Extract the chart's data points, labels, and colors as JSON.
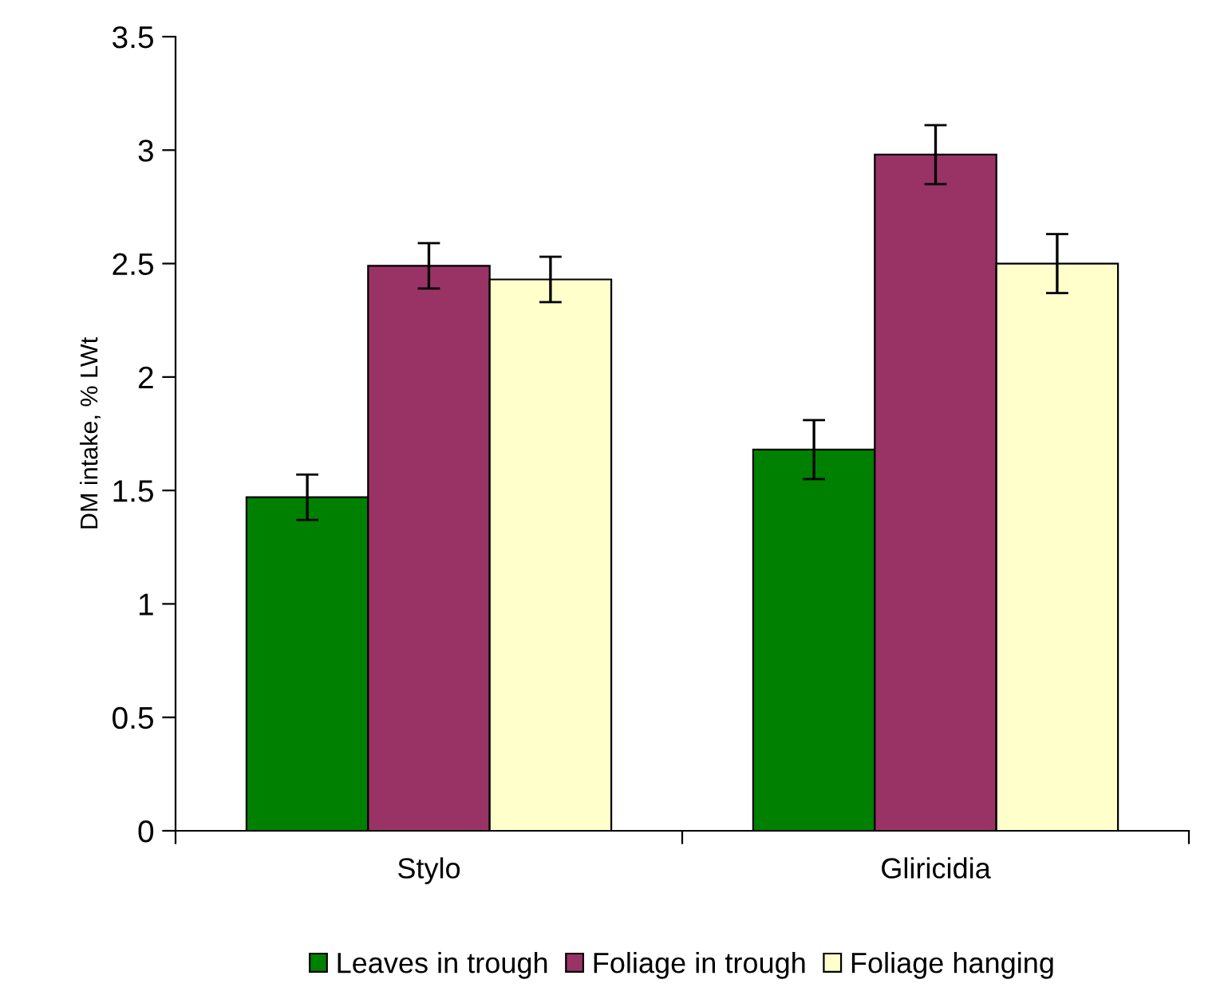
{
  "chart_data": {
    "type": "bar",
    "ylabel": "DM intake, % LWt",
    "categories": [
      "Stylo",
      "Gliricidia"
    ],
    "series": [
      {
        "name": "Leaves in trough",
        "color": "#008000",
        "values": [
          1.47,
          1.68
        ],
        "errors": [
          0.1,
          0.13
        ]
      },
      {
        "name": "Foliage in trough",
        "color": "#993366",
        "values": [
          2.49,
          2.98
        ],
        "errors": [
          0.1,
          0.13
        ]
      },
      {
        "name": "Foliage hanging",
        "color": "#ffffcc",
        "values": [
          2.43,
          2.5
        ],
        "errors": [
          0.1,
          0.13
        ]
      }
    ],
    "ylim": [
      0,
      3.5
    ],
    "yticks": [
      0,
      0.5,
      1,
      1.5,
      2,
      2.5,
      3,
      3.5
    ],
    "grid": false,
    "legend": "bottom"
  }
}
